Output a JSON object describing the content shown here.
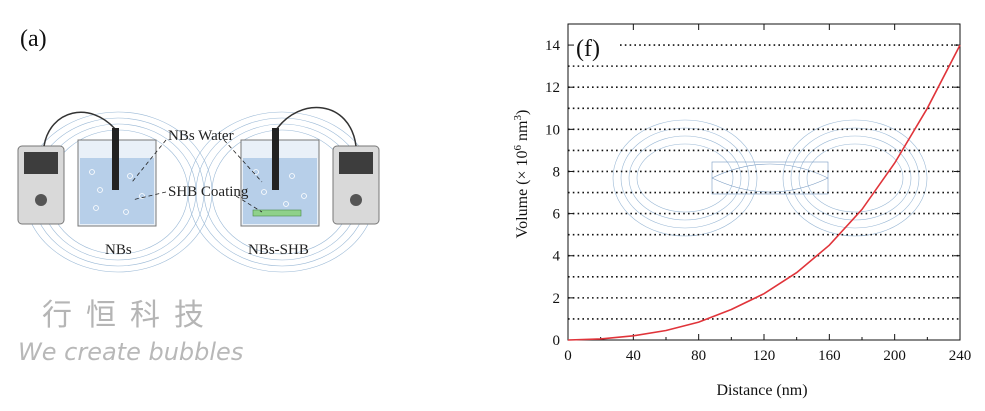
{
  "panel_a": {
    "label": "(a)",
    "callouts": {
      "nbs_water": "NBs Water",
      "shb_coating": "SHB Coating"
    },
    "beaker_left_label": "NBs",
    "beaker_right_label": "NBs-SHB"
  },
  "watermark": {
    "chinese": "行恒科技",
    "english": "We create bubbles"
  },
  "chart_data": {
    "type": "line",
    "panel_label": "(f)",
    "xlabel": "Distance (nm)",
    "ylabel_main": "Volume (× 10",
    "ylabel_sup1": "6",
    "ylabel_mid": " nm",
    "ylabel_sup2": "3",
    "ylabel_end": ")",
    "xlim": [
      0,
      240
    ],
    "ylim": [
      0,
      15
    ],
    "xticks": [
      0,
      40,
      80,
      120,
      160,
      200,
      240
    ],
    "yticks": [
      0,
      2,
      4,
      6,
      8,
      10,
      12,
      14
    ],
    "dotted_hlines": [
      1,
      2,
      3,
      4,
      5,
      6,
      7,
      8,
      9,
      10,
      11,
      12,
      13,
      14
    ],
    "series": [
      {
        "color": "#e0343a",
        "x": [
          0,
          20,
          40,
          60,
          80,
          100,
          120,
          140,
          160,
          180,
          200,
          220,
          240
        ],
        "y": [
          0,
          0.05,
          0.2,
          0.45,
          0.85,
          1.45,
          2.2,
          3.2,
          4.5,
          6.2,
          8.4,
          11.0,
          14.0
        ]
      }
    ],
    "grid": false,
    "legend": "none"
  }
}
